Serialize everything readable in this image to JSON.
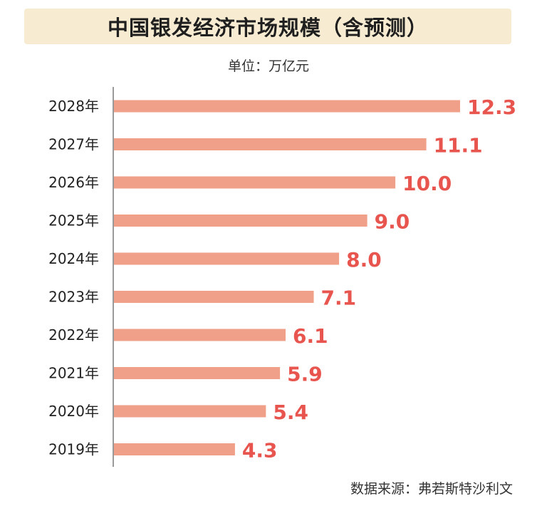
{
  "title": "中国银发经济市场规模（含预测）",
  "unit": "单位：万亿元",
  "source": "数据来源：弗若斯特沙利文",
  "colors": {
    "bar": "#f09f88",
    "value_label": "#e8554e",
    "axis": "#9a9a9a",
    "title_bg": "#f7ecd2",
    "tick_label": "#222222"
  },
  "chart_data": {
    "type": "bar",
    "orientation": "horizontal",
    "title": "中国银发经济市场规模（含预测）",
    "ylabel": "单位：万亿元",
    "categories": [
      "2028年",
      "2027年",
      "2026年",
      "2025年",
      "2024年",
      "2023年",
      "2022年",
      "2021年",
      "2020年",
      "2019年"
    ],
    "values": [
      12.3,
      11.1,
      10.0,
      9.0,
      8.0,
      7.1,
      6.1,
      5.9,
      5.4,
      4.3
    ],
    "value_labels": [
      "12.3",
      "11.1",
      "10.0",
      "9.0",
      "8.0",
      "7.1",
      "6.1",
      "5.9",
      "5.4",
      "4.3"
    ],
    "xlim": [
      0,
      12.3
    ],
    "grid": false,
    "legend": "none"
  }
}
